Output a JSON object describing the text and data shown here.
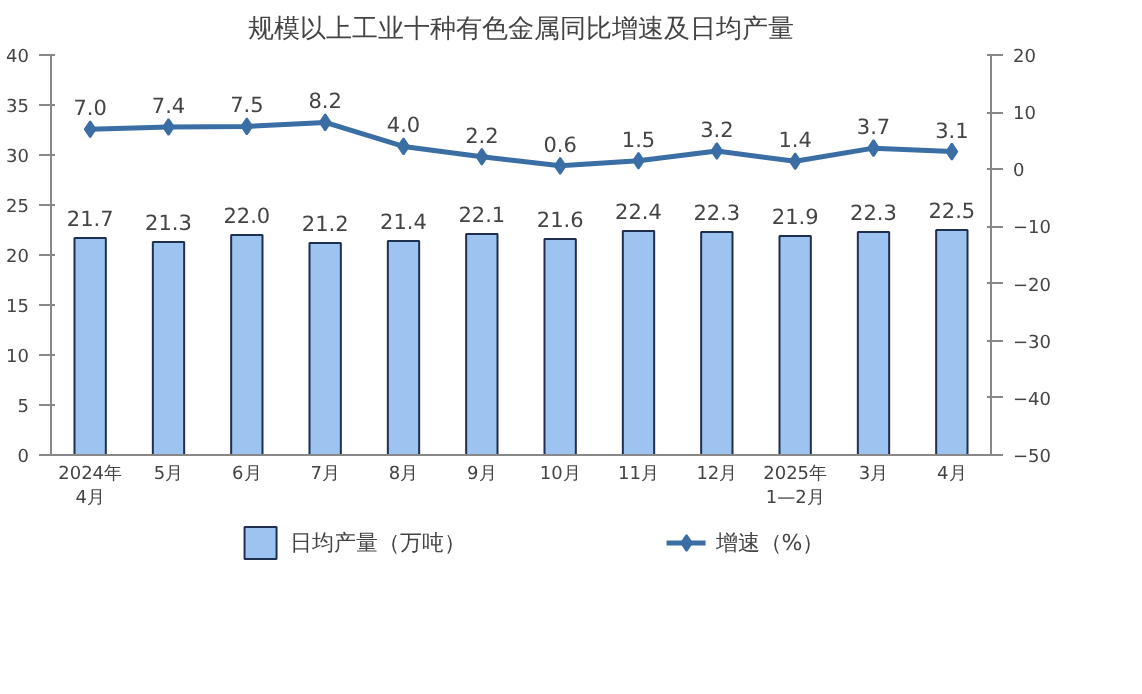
{
  "chart_data": {
    "type": "bar",
    "title": "规模以上工业十种有色金属同比增速及日均产量",
    "categories": [
      "2024年\n4月",
      "5月",
      "6月",
      "7月",
      "8月",
      "9月",
      "10月",
      "11月",
      "12月",
      "2025年\n1—2月",
      "3月",
      "4月"
    ],
    "series": [
      {
        "name": "日均产量（万吨）",
        "color": "#9dc3f0",
        "values": [
          21.7,
          21.3,
          22.0,
          21.2,
          21.4,
          22.1,
          21.6,
          22.4,
          22.3,
          21.9,
          22.3,
          22.5
        ],
        "value_labels": [
          "21.7",
          "21.3",
          "22.0",
          "21.2",
          "21.4",
          "22.1",
          "21.6",
          "22.4",
          "22.3",
          "21.9",
          "22.3",
          "22.5"
        ]
      },
      {
        "name": "增速（%）",
        "type": "line",
        "axis": "y2",
        "color": "#3a6ea5",
        "marker": "diamond",
        "values": [
          7.0,
          7.4,
          7.5,
          8.2,
          4.0,
          2.2,
          0.6,
          1.5,
          3.2,
          1.4,
          3.7,
          3.1
        ],
        "value_labels": [
          "7.0",
          "7.4",
          "7.5",
          "8.2",
          "4.0",
          "2.2",
          "0.6",
          "1.5",
          "3.2",
          "1.4",
          "3.7",
          "3.1"
        ]
      }
    ],
    "ylim": [
      0,
      40
    ],
    "yticks": [
      0,
      5,
      10,
      15,
      20,
      25,
      30,
      35,
      40
    ],
    "y2lim": [
      -50,
      20
    ],
    "y2ticks": [
      -50,
      -40,
      -30,
      -20,
      -10,
      0,
      10,
      20
    ],
    "grid": false,
    "legend": "bottom"
  }
}
